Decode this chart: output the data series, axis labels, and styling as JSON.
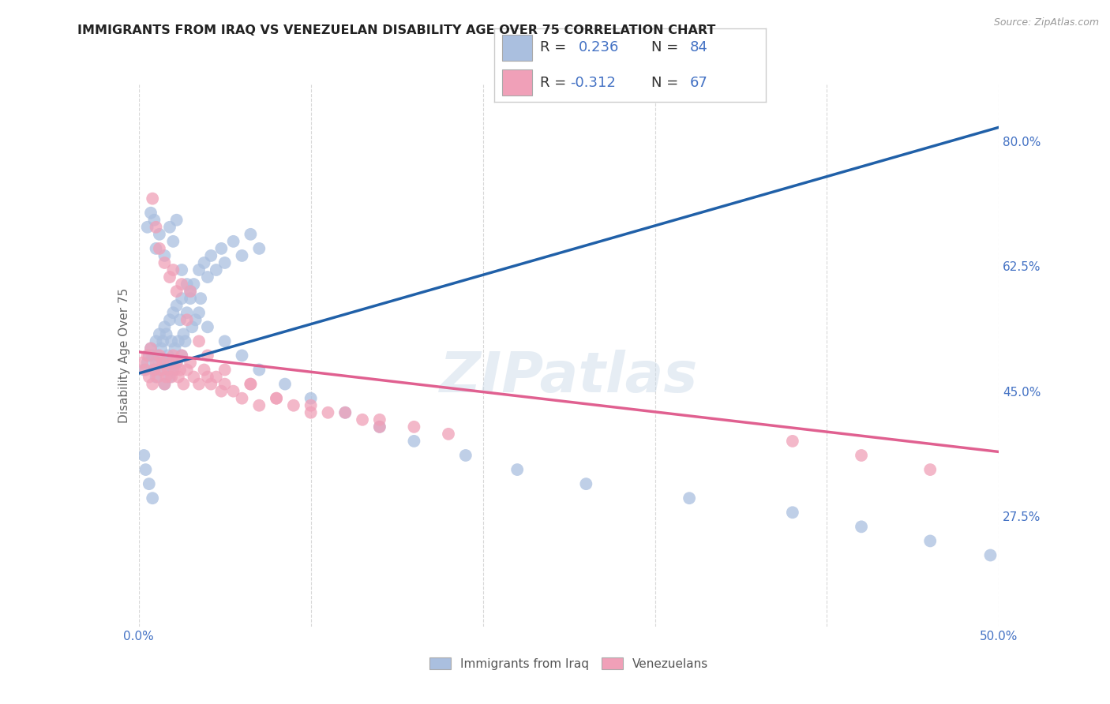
{
  "title": "IMMIGRANTS FROM IRAQ VS VENEZUELAN DISABILITY AGE OVER 75 CORRELATION CHART",
  "source": "Source: ZipAtlas.com",
  "ylabel": "Disability Age Over 75",
  "xlim": [
    0.0,
    0.5
  ],
  "ylim": [
    0.12,
    0.88
  ],
  "yticks_right": [
    0.275,
    0.45,
    0.625,
    0.8
  ],
  "ytick_labels_right": [
    "27.5%",
    "45.0%",
    "62.5%",
    "80.0%"
  ],
  "iraq_color": "#aabfdf",
  "ven_color": "#f0a0b8",
  "iraq_line_color": "#2060a8",
  "ven_line_color": "#e06090",
  "iraq_line_x0": 0.0,
  "iraq_line_y0": 0.475,
  "iraq_line_x1": 0.5,
  "iraq_line_y1": 0.82,
  "ven_line_x0": 0.0,
  "ven_line_y0": 0.505,
  "ven_line_x1": 0.5,
  "ven_line_y1": 0.365,
  "iraq_scatter_x": [
    0.003,
    0.005,
    0.006,
    0.007,
    0.008,
    0.009,
    0.01,
    0.01,
    0.011,
    0.012,
    0.012,
    0.013,
    0.014,
    0.014,
    0.015,
    0.015,
    0.016,
    0.016,
    0.017,
    0.018,
    0.018,
    0.019,
    0.02,
    0.02,
    0.021,
    0.022,
    0.022,
    0.023,
    0.024,
    0.025,
    0.025,
    0.026,
    0.027,
    0.028,
    0.03,
    0.031,
    0.032,
    0.033,
    0.035,
    0.036,
    0.038,
    0.04,
    0.042,
    0.045,
    0.048,
    0.05,
    0.055,
    0.06,
    0.065,
    0.07,
    0.005,
    0.007,
    0.009,
    0.01,
    0.012,
    0.015,
    0.018,
    0.02,
    0.022,
    0.025,
    0.028,
    0.03,
    0.035,
    0.04,
    0.05,
    0.06,
    0.07,
    0.085,
    0.1,
    0.12,
    0.14,
    0.16,
    0.19,
    0.22,
    0.26,
    0.32,
    0.38,
    0.42,
    0.46,
    0.495,
    0.003,
    0.004,
    0.006,
    0.008
  ],
  "iraq_scatter_y": [
    0.48,
    0.49,
    0.5,
    0.51,
    0.5,
    0.48,
    0.52,
    0.47,
    0.5,
    0.53,
    0.49,
    0.51,
    0.52,
    0.48,
    0.54,
    0.46,
    0.53,
    0.49,
    0.5,
    0.55,
    0.47,
    0.52,
    0.56,
    0.48,
    0.51,
    0.57,
    0.49,
    0.52,
    0.55,
    0.58,
    0.5,
    0.53,
    0.52,
    0.56,
    0.59,
    0.54,
    0.6,
    0.55,
    0.62,
    0.58,
    0.63,
    0.61,
    0.64,
    0.62,
    0.65,
    0.63,
    0.66,
    0.64,
    0.67,
    0.65,
    0.68,
    0.7,
    0.69,
    0.65,
    0.67,
    0.64,
    0.68,
    0.66,
    0.69,
    0.62,
    0.6,
    0.58,
    0.56,
    0.54,
    0.52,
    0.5,
    0.48,
    0.46,
    0.44,
    0.42,
    0.4,
    0.38,
    0.36,
    0.34,
    0.32,
    0.3,
    0.28,
    0.26,
    0.24,
    0.22,
    0.36,
    0.34,
    0.32,
    0.3
  ],
  "ven_scatter_x": [
    0.002,
    0.004,
    0.005,
    0.006,
    0.007,
    0.008,
    0.009,
    0.01,
    0.011,
    0.012,
    0.013,
    0.014,
    0.015,
    0.016,
    0.017,
    0.018,
    0.019,
    0.02,
    0.021,
    0.022,
    0.023,
    0.024,
    0.025,
    0.026,
    0.028,
    0.03,
    0.032,
    0.035,
    0.038,
    0.04,
    0.042,
    0.045,
    0.048,
    0.05,
    0.055,
    0.06,
    0.065,
    0.07,
    0.08,
    0.09,
    0.1,
    0.11,
    0.12,
    0.13,
    0.14,
    0.16,
    0.18,
    0.02,
    0.025,
    0.03,
    0.008,
    0.01,
    0.012,
    0.015,
    0.018,
    0.022,
    0.028,
    0.035,
    0.04,
    0.05,
    0.065,
    0.08,
    0.1,
    0.14,
    0.38,
    0.42,
    0.46
  ],
  "ven_scatter_y": [
    0.49,
    0.48,
    0.5,
    0.47,
    0.51,
    0.46,
    0.48,
    0.49,
    0.47,
    0.5,
    0.48,
    0.49,
    0.46,
    0.47,
    0.48,
    0.49,
    0.47,
    0.5,
    0.48,
    0.49,
    0.47,
    0.48,
    0.5,
    0.46,
    0.48,
    0.49,
    0.47,
    0.46,
    0.48,
    0.47,
    0.46,
    0.47,
    0.45,
    0.46,
    0.45,
    0.44,
    0.46,
    0.43,
    0.44,
    0.43,
    0.43,
    0.42,
    0.42,
    0.41,
    0.41,
    0.4,
    0.39,
    0.62,
    0.6,
    0.59,
    0.72,
    0.68,
    0.65,
    0.63,
    0.61,
    0.59,
    0.55,
    0.52,
    0.5,
    0.48,
    0.46,
    0.44,
    0.42,
    0.4,
    0.38,
    0.36,
    0.34
  ],
  "watermark": "ZIPatlas",
  "background_color": "#ffffff",
  "grid_color": "#d8d8d8",
  "legend_text_color": "#4472c4",
  "title_fontsize": 11.5,
  "tick_fontsize": 11,
  "ylabel_fontsize": 11
}
